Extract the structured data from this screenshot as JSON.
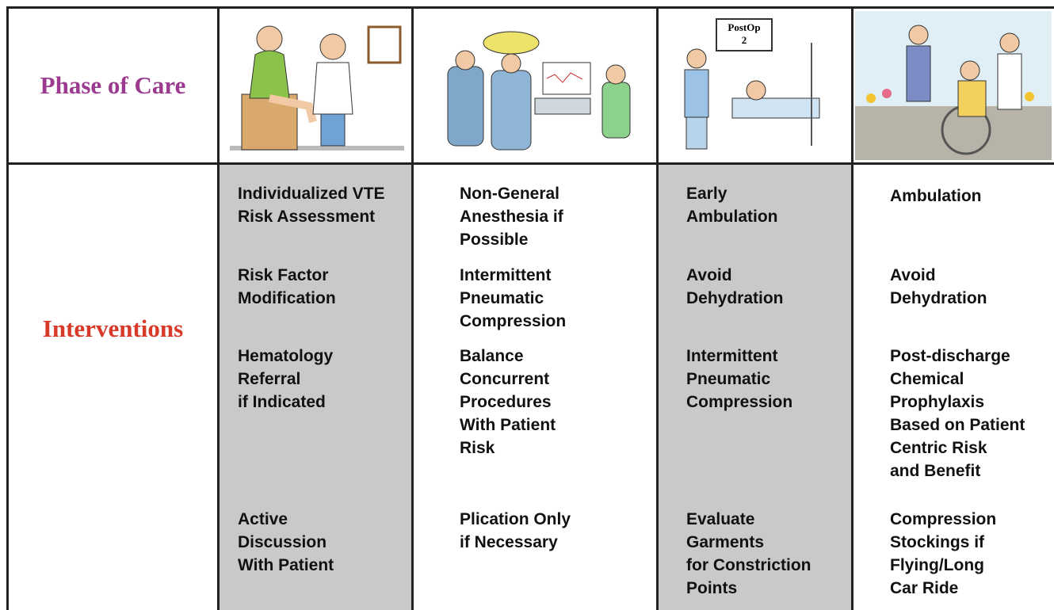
{
  "row_labels": [
    "Phase of Care",
    "Interventions"
  ],
  "illustrations": {
    "postop_sign": [
      "PostOp",
      "2"
    ]
  },
  "columns": [
    {
      "items": [
        "Individualized VTE\nRisk Assessment",
        "Risk Factor\nModification",
        "Hematology\nReferral\nif Indicated",
        "Active\nDiscussion\nWith Patient"
      ]
    },
    {
      "items": [
        "Non-General\nAnesthesia if\nPossible",
        "Intermittent\nPneumatic\nCompression",
        "Balance\nConcurrent\nProcedures\nWith Patient\nRisk",
        "Plication Only\nif Necessary"
      ]
    },
    {
      "items": [
        "Early\nAmbulation",
        "Avoid\nDehydration",
        "Intermittent\nPneumatic\nCompression",
        "Evaluate\nGarments\nfor Constriction\nPoints"
      ]
    },
    {
      "items": [
        "Ambulation",
        "Avoid\nDehydration",
        "Post-discharge\nChemical\nProphylaxis\nBased on Patient\nCentric Risk\nand Benefit",
        "Compression\nStockings if\nFlying/Long\nCar Ride"
      ]
    }
  ]
}
